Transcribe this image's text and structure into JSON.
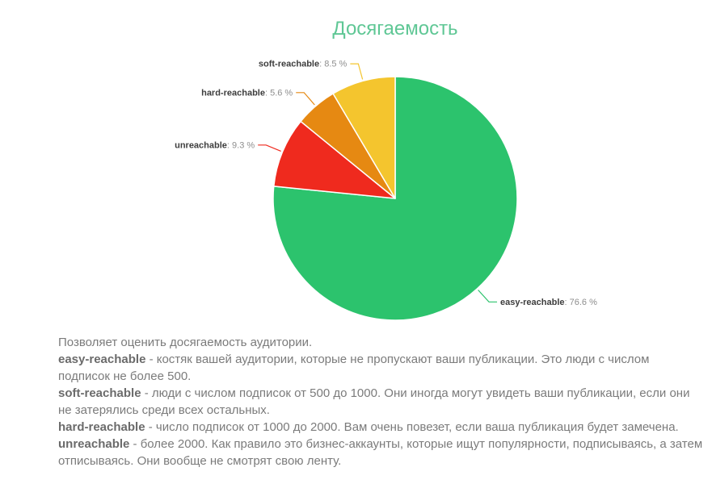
{
  "page": {
    "title": "Досягаемость"
  },
  "chart_data": {
    "type": "pie",
    "title": "Досягаемость",
    "slices": [
      {
        "label": "easy-reachable",
        "value": 76.6,
        "color": "#2cc36d"
      },
      {
        "label": "unreachable",
        "value": 9.3,
        "color": "#ef2a1e"
      },
      {
        "label": "hard-reachable",
        "value": 5.6,
        "color": "#e68912"
      },
      {
        "label": "soft-reachable",
        "value": 8.5,
        "color": "#f4c52e"
      }
    ],
    "value_suffix": " %",
    "label_separator": ": ",
    "start_angle_deg": 0,
    "direction": "clockwise",
    "legend_position": "callout-labels",
    "title_color": "#5fc795",
    "label_name_color": "#3d3d3d",
    "label_value_color": "#8e8e8e"
  },
  "description": {
    "intro": "Позволяет оценить досягаемость аудитории.",
    "items": [
      {
        "term": "easy-reachable",
        "text": " - костяк вашей аудитории, которые не пропускают ваши публикации. Это люди с числом подписок не более 500."
      },
      {
        "term": "soft-reachable",
        "text": " - люди с числом подписок от 500 до 1000. Они иногда могут увидеть ваши публикации, если они не затерялись среди всех остальных."
      },
      {
        "term": "hard-reachable",
        "text": " - число подписок от 1000 до 2000. Вам очень повезет, если ваша публикация будет замечена."
      },
      {
        "term": "unreachable",
        "text": " - более 2000. Как правило это бизнес-аккаунты, которые ищут популярности, подписываясь, а затем отписываясь. Они вообще не смотрят свою ленту."
      }
    ]
  }
}
